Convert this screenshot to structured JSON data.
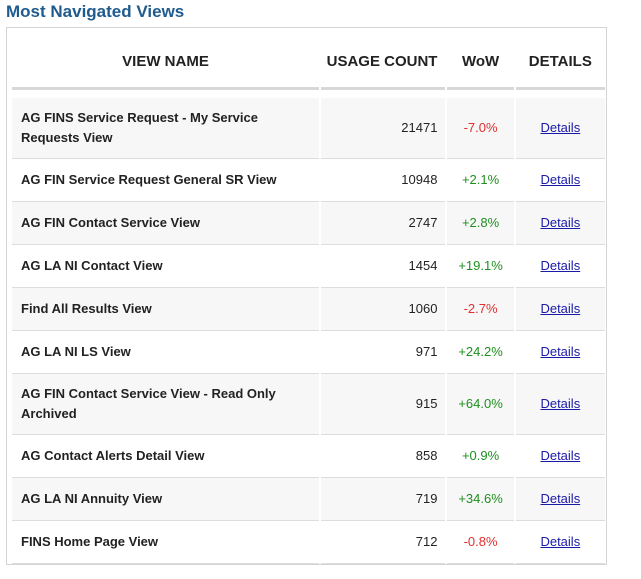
{
  "title": "Most Navigated Views",
  "headers": {
    "view_name": "VIEW NAME",
    "usage_count": "USAGE COUNT",
    "wow": "WoW",
    "details": "DETAILS"
  },
  "details_label": "Details",
  "colors": {
    "title": "#1f5b8e",
    "negative": "#e03030",
    "positive": "#1f8f1f",
    "link": "#1a1aa8"
  },
  "rows": [
    {
      "name": "AG FINS Service Request - My Service Requests View",
      "count": "21471",
      "wow": "-7.0%"
    },
    {
      "name": "AG FIN Service Request General SR View",
      "count": "10948",
      "wow": "+2.1%"
    },
    {
      "name": "AG FIN Contact Service View",
      "count": "2747",
      "wow": "+2.8%"
    },
    {
      "name": "AG LA NI Contact View",
      "count": "1454",
      "wow": "+19.1%"
    },
    {
      "name": "Find All Results View",
      "count": "1060",
      "wow": "-2.7%"
    },
    {
      "name": "AG LA NI LS View",
      "count": "971",
      "wow": "+24.2%"
    },
    {
      "name": "AG FIN Contact Service View - Read Only Archived",
      "count": "915",
      "wow": "+64.0%"
    },
    {
      "name": "AG Contact Alerts Detail View",
      "count": "858",
      "wow": "+0.9%"
    },
    {
      "name": "AG LA NI Annuity View",
      "count": "719",
      "wow": "+34.6%"
    },
    {
      "name": "FINS Home Page View",
      "count": "712",
      "wow": "-0.8%"
    }
  ]
}
